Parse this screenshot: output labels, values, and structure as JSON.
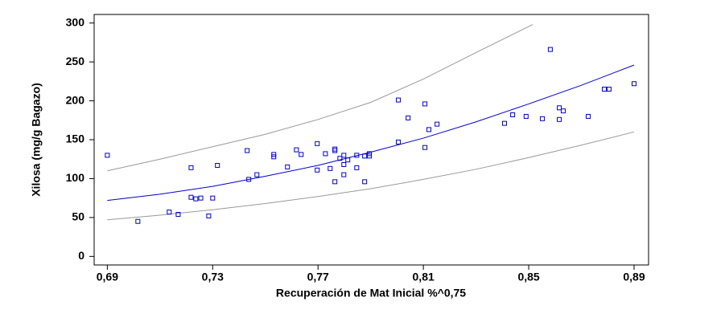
{
  "chart_data": {
    "type": "scatter",
    "x_label": "Recuperación de Mat Inicial %^0,75",
    "y_label": "Xilosa (mg/g Bagazo)",
    "xlim": [
      0.685,
      0.8955
    ],
    "ylim": [
      -11,
      311
    ],
    "xticks": [
      {
        "value": 0.69,
        "label": "0,69"
      },
      {
        "value": 0.73,
        "label": "0,73"
      },
      {
        "value": 0.77,
        "label": "0,77"
      },
      {
        "value": 0.81,
        "label": "0,81"
      },
      {
        "value": 0.85,
        "label": "0,85"
      },
      {
        "value": 0.89,
        "label": "0,89"
      }
    ],
    "yticks": [
      0,
      50,
      100,
      150,
      200,
      250,
      300
    ],
    "points": {
      "color": "#0000cc",
      "x": [
        0.69,
        0.7016,
        0.7135,
        0.7169,
        0.7218,
        0.7218,
        0.7236,
        0.7255,
        0.7285,
        0.73,
        0.7318,
        0.7431,
        0.7437,
        0.7468,
        0.7532,
        0.7532,
        0.7584,
        0.7618,
        0.7636,
        0.7697,
        0.7697,
        0.7728,
        0.7746,
        0.7764,
        0.7764,
        0.7764,
        0.7783,
        0.7798,
        0.7798,
        0.7798,
        0.7813,
        0.7847,
        0.7847,
        0.7877,
        0.7877,
        0.7895,
        0.7895,
        0.8005,
        0.8005,
        0.8042,
        0.8106,
        0.8106,
        0.8121,
        0.8152,
        0.8408,
        0.8439,
        0.849,
        0.8552,
        0.8582,
        0.8616,
        0.8616,
        0.8631,
        0.8726,
        0.8787,
        0.8805,
        0.89
      ],
      "y": [
        130,
        45,
        57,
        54,
        114,
        76,
        74,
        75,
        52,
        75,
        117,
        136,
        99,
        105,
        131,
        128,
        115,
        137,
        131,
        145,
        111,
        132,
        113,
        138,
        136,
        96,
        126,
        130,
        118,
        105,
        124,
        130,
        114,
        129,
        96,
        132,
        129,
        201,
        147,
        178,
        196,
        140,
        163,
        170,
        171,
        182,
        180,
        177,
        266,
        191,
        176,
        187,
        180,
        215,
        215,
        222
      ]
    },
    "fit": {
      "color": "#0000cc",
      "x": [
        0.69,
        0.71,
        0.73,
        0.75,
        0.77,
        0.79,
        0.81,
        0.83,
        0.85,
        0.87,
        0.89
      ],
      "values": [
        72,
        80,
        90,
        103,
        117,
        134,
        152,
        173,
        196,
        220,
        246
      ]
    },
    "upper": {
      "color": "#999999",
      "x": [
        0.69,
        0.71,
        0.73,
        0.75,
        0.77,
        0.79,
        0.81,
        0.83,
        0.8515
      ],
      "values": [
        110,
        125,
        141,
        157,
        176,
        198,
        228,
        262,
        298
      ]
    },
    "lower": {
      "color": "#999999",
      "x": [
        0.69,
        0.71,
        0.73,
        0.75,
        0.77,
        0.79,
        0.81,
        0.83,
        0.85,
        0.87,
        0.89
      ],
      "values": [
        47,
        53,
        60,
        68,
        77,
        87,
        99,
        112,
        127,
        143,
        160
      ]
    }
  }
}
